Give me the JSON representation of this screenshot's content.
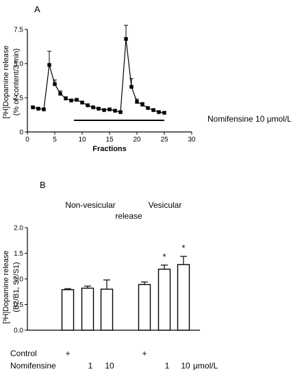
{
  "chart_data": [
    {
      "panel_label": "A",
      "type": "line",
      "xlabel": "Fractions",
      "ylabel": "[³H]Dopamine release",
      "ylabel2": "(% of content/3 min)",
      "xlim": [
        0,
        30
      ],
      "ylim": [
        0,
        7.5
      ],
      "xticks": [
        0,
        5,
        10,
        15,
        20,
        25,
        30
      ],
      "yticks": [
        {
          "value": 0.0,
          "label": "0"
        },
        {
          "value": 2.5,
          "label": "2.5"
        },
        {
          "value": 5.0,
          "label": "5.0"
        },
        {
          "value": 7.5,
          "label": "7.5"
        }
      ],
      "x": [
        1,
        2,
        3,
        4,
        5,
        6,
        7,
        8,
        9,
        10,
        11,
        12,
        13,
        14,
        15,
        16,
        17,
        18,
        19,
        20,
        21,
        22,
        23,
        24,
        25
      ],
      "y": [
        1.8,
        1.7,
        1.65,
        4.9,
        3.5,
        2.8,
        2.45,
        2.3,
        2.35,
        2.15,
        1.95,
        1.8,
        1.7,
        1.6,
        1.65,
        1.55,
        1.45,
        6.8,
        3.3,
        2.2,
        2.0,
        1.75,
        1.6,
        1.45,
        1.4
      ],
      "err": [
        0.08,
        0.08,
        0.08,
        1.0,
        0.3,
        0.2,
        0.12,
        0.1,
        0.1,
        0.1,
        0.1,
        0.08,
        0.08,
        0.08,
        0.08,
        0.08,
        0.08,
        1.0,
        0.6,
        0.2,
        0.15,
        0.1,
        0.08,
        0.08,
        0.08
      ],
      "treatment": {
        "label": "Nomifensine 10 μmol/L",
        "x_start": 8.5,
        "x_end": 25
      }
    },
    {
      "panel_label": "B",
      "type": "bar",
      "ylabel": "[³H]Dopamine release",
      "ylabel2": "(B2/B1, S2/S1)",
      "ylim": [
        0,
        2.0
      ],
      "yticks": [
        {
          "value": 0.0,
          "label": "0.0"
        },
        {
          "value": 0.5,
          "label": "0.5"
        },
        {
          "value": 1.0,
          "label": "1.0"
        },
        {
          "value": 1.5,
          "label": "1.5"
        },
        {
          "value": 2.0,
          "label": "2.0"
        }
      ],
      "values": [
        0.79,
        0.82,
        0.8,
        0.89,
        1.19,
        1.28
      ],
      "errors": [
        0.02,
        0.04,
        0.18,
        0.05,
        0.08,
        0.16
      ],
      "significant": [
        false,
        false,
        false,
        false,
        true,
        true
      ],
      "significance_mark": "*",
      "groups": [
        {
          "label": "Non-vesicular",
          "bars": [
            0,
            1,
            2
          ]
        },
        {
          "label": "Vesicular",
          "bars": [
            3,
            4,
            5
          ]
        }
      ],
      "group_shared_label": "release",
      "row_labels": {
        "control": "Control",
        "nomifensine": "Nomifensine",
        "unit": "μmol/L"
      },
      "control_marks": [
        "+",
        "",
        "",
        "+",
        "",
        ""
      ],
      "nomifensine_values": [
        "",
        "1",
        "10",
        "",
        "1",
        "10"
      ]
    }
  ]
}
